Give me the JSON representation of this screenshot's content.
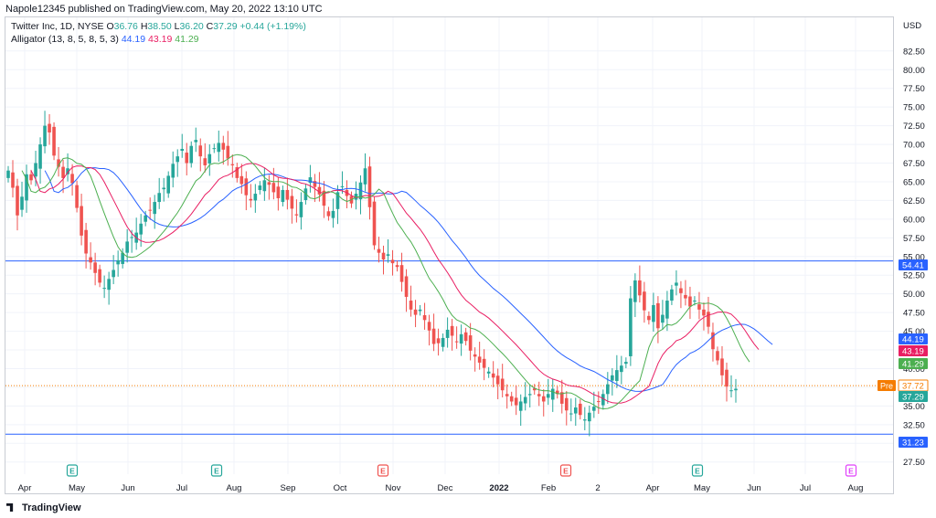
{
  "header": {
    "published": "Napole12345 published on TradingView.com, May 20, 2022 13:10 UTC"
  },
  "legend": {
    "symbol": "Twitter Inc, 1D, NYSE",
    "o_label": "O",
    "o": "36.76",
    "h_label": "H",
    "h": "38.50",
    "l_label": "L",
    "l": "36.20",
    "c_label": "C",
    "c": "37.29",
    "change": "+0.44 (+1.19%)",
    "indicator": "Alligator (13, 8, 5, 8, 5, 3)",
    "jaw": "44.19",
    "teeth": "43.19",
    "lips": "41.29"
  },
  "footer": {
    "brand": "TradingView"
  },
  "colors": {
    "up": "#26a69a",
    "down": "#ef5350",
    "jaw": "#2962ff",
    "teeth": "#e91e63",
    "lips": "#4caf50",
    "hline": "#2962ff"
  },
  "chart_data": {
    "type": "candlestick",
    "currency": "USD",
    "ylim": [
      26,
      87
    ],
    "y_ticks": [
      "27.50",
      "30.00",
      "32.50",
      "35.00",
      "37.50",
      "40.00",
      "42.50",
      "45.00",
      "47.50",
      "50.00",
      "52.50",
      "55.00",
      "57.50",
      "60.00",
      "62.50",
      "65.00",
      "67.50",
      "70.00",
      "72.50",
      "75.00",
      "77.50",
      "80.00",
      "82.50"
    ],
    "x_labels": [
      "Apr",
      "May",
      "Jun",
      "Jul",
      "Aug",
      "Sep",
      "Oct",
      "Nov",
      "Dec",
      "2022",
      "Feb",
      "2",
      "Apr",
      "May",
      "Jun",
      "Jul",
      "Aug"
    ],
    "horizontal_lines": [
      54.41,
      31.23
    ],
    "price_tags": [
      {
        "value": 54.41,
        "label": "54.41",
        "color": "#2962ff"
      },
      {
        "value": 44.19,
        "label": "44.19",
        "color": "#2962ff"
      },
      {
        "value": 43.19,
        "label": "43.19",
        "color": "#e91e63"
      },
      {
        "value": 41.29,
        "label": "41.29",
        "color": "#4caf50"
      },
      {
        "value": 37.72,
        "label": "37.72",
        "color": "#f57c00",
        "prefix": "Pre"
      },
      {
        "value": 37.29,
        "label": "37.29",
        "color": "#26a69a"
      },
      {
        "value": 31.23,
        "label": "31.23",
        "color": "#2962ff"
      }
    ],
    "earnings_markers": [
      {
        "label": "E",
        "color": "#26a69a"
      },
      {
        "label": "E",
        "color": "#26a69a"
      },
      {
        "label": "E",
        "color": "#ef5350"
      },
      {
        "label": "E",
        "color": "#ef5350"
      },
      {
        "label": "E",
        "color": "#26a69a"
      },
      {
        "label": "E",
        "color": "#e040fb"
      }
    ],
    "closes": [
      66.5,
      64.2,
      60.5,
      63,
      66,
      65.2,
      67.5,
      70,
      72.5,
      71.6,
      68.5,
      67,
      65.5,
      66.8,
      64.8,
      61.5,
      57.8,
      55.4,
      54.2,
      52.8,
      51.5,
      50.8,
      52,
      53.2,
      54.5,
      55.5,
      57,
      57.6,
      58.2,
      59.4,
      60.5,
      61.2,
      62.3,
      63.5,
      64.2,
      65.8,
      67.4,
      68.4,
      69.4,
      67.5,
      69.8,
      70.6,
      68.4,
      67.2,
      68.7,
      69.5,
      70.2,
      69.3,
      68.1,
      67.2,
      65.5,
      64.7,
      63.2,
      62.5,
      63.4,
      64.5,
      65.2,
      64.6,
      63.6,
      62.8,
      63.9,
      62.6,
      61.4,
      60.5,
      62.3,
      64.1,
      65.6,
      64.3,
      63.3,
      61.8,
      60.4,
      61.1,
      63.6,
      64.4,
      63.1,
      62.1,
      63.4,
      64.9,
      66.8,
      61.6,
      56.5,
      55.5,
      54.6,
      55.3,
      54.1,
      53.6,
      51.6,
      49.6,
      47.9,
      47.2,
      47.9,
      46.5,
      45.1,
      43.3,
      43.4,
      44.1,
      45.2,
      44.4,
      43.6,
      44.6,
      43.7,
      42.4,
      41.6,
      40.8,
      40.1,
      39.6,
      38.8,
      37.9,
      37.1,
      36.3,
      35.6,
      35.1,
      35.6,
      36.2,
      36.6,
      37.1,
      36.3,
      35.6,
      36.6,
      37.3,
      36.6,
      35.3,
      34.4,
      34.0,
      34.8,
      33.8,
      33.2,
      34.1,
      34.9,
      35.6,
      36.6,
      37.9,
      39.1,
      39.8,
      40.4,
      40.9,
      49.4,
      51.8,
      49.8,
      47.8,
      46.5,
      48.5,
      45.4,
      47.2,
      49.1,
      50.6,
      51.5,
      50.1,
      49.4,
      48.3,
      49.1,
      47.9,
      47.1,
      45.6,
      42.6,
      41.1,
      39.1,
      37.6,
      37.1,
      37.3
    ]
  }
}
